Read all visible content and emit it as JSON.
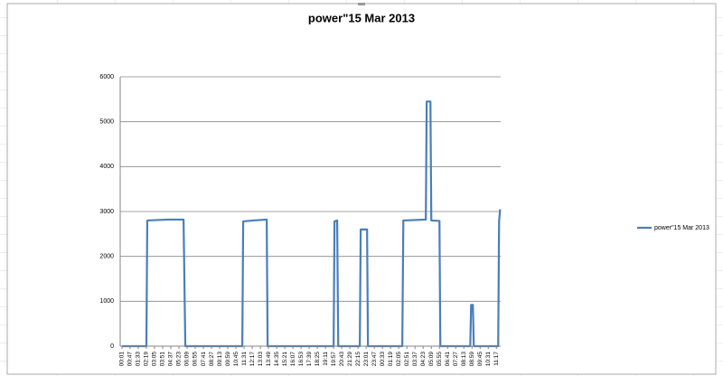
{
  "chart_data": {
    "type": "line",
    "title": "power\"15 Mar 2013",
    "series": [
      {
        "name": "power\"15 Mar 2013",
        "color": "#4a7ebb",
        "x": [
          0,
          138,
          143,
          200,
          260,
          348,
          358,
          680,
          685,
          740,
          818,
          823,
          1196,
          1201,
          1216,
          1222,
          1344,
          1349,
          1385,
          1390,
          1584,
          1590,
          1717,
          1722,
          1743,
          1748,
          1794,
          1799,
          1968,
          1973,
          1983,
          1988,
          2126,
          2131,
          2137
        ],
        "values": [
          0,
          0,
          2800,
          2810,
          2820,
          2820,
          0,
          0,
          2780,
          2800,
          2820,
          0,
          0,
          2780,
          2800,
          0,
          0,
          2600,
          2600,
          0,
          0,
          2800,
          2820,
          5450,
          5450,
          2800,
          2790,
          0,
          0,
          920,
          920,
          0,
          0,
          2780,
          3050
        ]
      }
    ],
    "xlim": [
      -10,
      2140
    ],
    "xticks": [
      {
        "value": 0,
        "label": "00:01"
      },
      {
        "value": 46,
        "label": "00:47"
      },
      {
        "value": 92,
        "label": "01:33"
      },
      {
        "value": 138,
        "label": "02:19"
      },
      {
        "value": 184,
        "label": "03:05"
      },
      {
        "value": 230,
        "label": "03:51"
      },
      {
        "value": 276,
        "label": "04:37"
      },
      {
        "value": 322,
        "label": "05:23"
      },
      {
        "value": 368,
        "label": "06:09"
      },
      {
        "value": 414,
        "label": "06:55"
      },
      {
        "value": 460,
        "label": "07:41"
      },
      {
        "value": 506,
        "label": "08:27"
      },
      {
        "value": 552,
        "label": "09:13"
      },
      {
        "value": 598,
        "label": "09:59"
      },
      {
        "value": 644,
        "label": "10:45"
      },
      {
        "value": 690,
        "label": "11:31"
      },
      {
        "value": 736,
        "label": "12:17"
      },
      {
        "value": 782,
        "label": "13:03"
      },
      {
        "value": 828,
        "label": "13:49"
      },
      {
        "value": 874,
        "label": "14:35"
      },
      {
        "value": 920,
        "label": "15:21"
      },
      {
        "value": 966,
        "label": "16:07"
      },
      {
        "value": 1012,
        "label": "16:53"
      },
      {
        "value": 1058,
        "label": "17:39"
      },
      {
        "value": 1104,
        "label": "18:25"
      },
      {
        "value": 1150,
        "label": "19:11"
      },
      {
        "value": 1196,
        "label": "19:57"
      },
      {
        "value": 1242,
        "label": "20:43"
      },
      {
        "value": 1288,
        "label": "21:29"
      },
      {
        "value": 1334,
        "label": "22:15"
      },
      {
        "value": 1380,
        "label": "23:01"
      },
      {
        "value": 1426,
        "label": "23:47"
      },
      {
        "value": 1472,
        "label": "00:33"
      },
      {
        "value": 1518,
        "label": "01:19"
      },
      {
        "value": 1564,
        "label": "02:05"
      },
      {
        "value": 1610,
        "label": "02:51"
      },
      {
        "value": 1656,
        "label": "03:37"
      },
      {
        "value": 1702,
        "label": "04:23"
      },
      {
        "value": 1748,
        "label": "05:09"
      },
      {
        "value": 1794,
        "label": "05:55"
      },
      {
        "value": 1840,
        "label": "06:41"
      },
      {
        "value": 1886,
        "label": "07:27"
      },
      {
        "value": 1932,
        "label": "08:13"
      },
      {
        "value": 1978,
        "label": "08:59"
      },
      {
        "value": 2024,
        "label": "09:45"
      },
      {
        "value": 2070,
        "label": "10:31"
      },
      {
        "value": 2116,
        "label": "11:17"
      }
    ],
    "ylim": [
      0,
      6000
    ],
    "yticks": [
      0,
      1000,
      2000,
      3000,
      4000,
      5000,
      6000
    ],
    "grid": true,
    "legend": "right"
  }
}
